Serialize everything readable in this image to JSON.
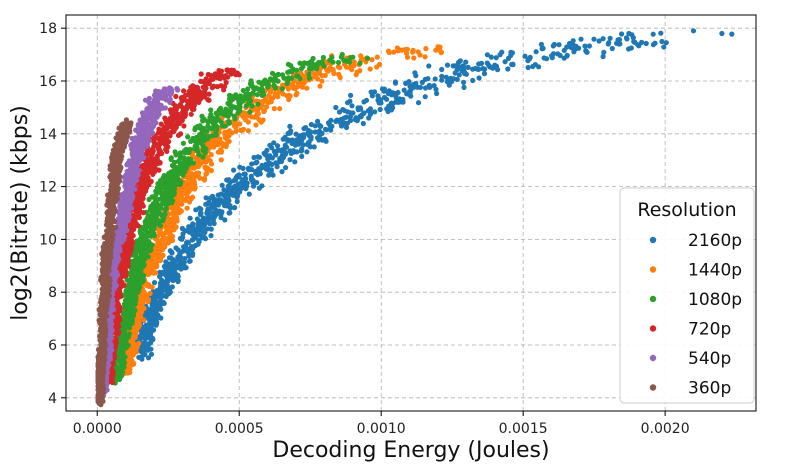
{
  "chart_data": {
    "type": "scatter",
    "title": "",
    "xlabel": "Decoding Energy (Joules)",
    "ylabel": "log2(Bitrate) (kbps)",
    "xlim": [
      -0.00011,
      0.00232
    ],
    "ylim": [
      3.5,
      18.5
    ],
    "x_ticks": [
      0.0,
      0.0005,
      0.001,
      0.0015,
      0.002
    ],
    "x_tick_labels": [
      "0.0000",
      "0.0005",
      "0.0010",
      "0.0015",
      "0.0020"
    ],
    "y_ticks": [
      4,
      6,
      8,
      10,
      12,
      14,
      16,
      18
    ],
    "y_tick_labels": [
      "4",
      "6",
      "8",
      "10",
      "12",
      "14",
      "16",
      "18"
    ],
    "grid": true,
    "legend": {
      "title": "Resolution",
      "position": "lower-right"
    },
    "series": [
      {
        "name": "2160p",
        "color": "#1f77b4",
        "points": [
          [
            0.00016,
            5.6
          ],
          [
            0.00018,
            6.6
          ],
          [
            0.00021,
            7.6
          ],
          [
            0.00026,
            8.6
          ],
          [
            0.00031,
            9.6
          ],
          [
            0.00038,
            10.6
          ],
          [
            0.00046,
            11.6
          ],
          [
            0.00057,
            12.6
          ],
          [
            0.0007,
            13.6
          ],
          [
            0.00087,
            14.6
          ],
          [
            0.0011,
            15.6
          ],
          [
            0.0014,
            16.6
          ],
          [
            0.0018,
            17.4
          ],
          [
            0.0021,
            17.9
          ],
          [
            0.0022,
            17.8
          ]
        ]
      },
      {
        "name": "1440p",
        "color": "#ff7f0e",
        "points": [
          [
            0.0001,
            5.0
          ],
          [
            0.00012,
            6.0
          ],
          [
            0.00014,
            7.0
          ],
          [
            0.00016,
            8.0
          ],
          [
            0.00019,
            9.0
          ],
          [
            0.00023,
            10.0
          ],
          [
            0.00027,
            11.0
          ],
          [
            0.00032,
            12.0
          ],
          [
            0.00038,
            13.0
          ],
          [
            0.00045,
            14.0
          ],
          [
            0.00056,
            15.0
          ],
          [
            0.00072,
            16.0
          ],
          [
            0.00093,
            16.8
          ],
          [
            0.0012,
            17.3
          ]
        ]
      },
      {
        "name": "1080p",
        "color": "#2ca02c",
        "points": [
          [
            7e-05,
            4.7
          ],
          [
            8e-05,
            5.7
          ],
          [
            0.0001,
            6.7
          ],
          [
            0.00012,
            7.7
          ],
          [
            0.00014,
            8.7
          ],
          [
            0.00016,
            9.7
          ],
          [
            0.0002,
            10.7
          ],
          [
            0.00024,
            11.7
          ],
          [
            0.00029,
            12.7
          ],
          [
            0.00036,
            13.7
          ],
          [
            0.00045,
            14.7
          ],
          [
            0.00058,
            15.7
          ],
          [
            0.00078,
            16.7
          ],
          [
            0.0009,
            16.9
          ]
        ]
      },
      {
        "name": "720p",
        "color": "#d62728",
        "points": [
          [
            4e-05,
            4.6
          ],
          [
            5e-05,
            5.6
          ],
          [
            6e-05,
            6.6
          ],
          [
            7e-05,
            7.6
          ],
          [
            8e-05,
            8.6
          ],
          [
            0.0001,
            9.6
          ],
          [
            0.00012,
            10.6
          ],
          [
            0.00015,
            11.6
          ],
          [
            0.00018,
            12.6
          ],
          [
            0.00022,
            13.6
          ],
          [
            0.00028,
            14.6
          ],
          [
            0.00036,
            15.6
          ],
          [
            0.00048,
            16.4
          ]
        ]
      },
      {
        "name": "540p",
        "color": "#9467bd",
        "points": [
          [
            2e-05,
            4.2
          ],
          [
            3e-05,
            5.2
          ],
          [
            4e-05,
            6.2
          ],
          [
            4e-05,
            7.2
          ],
          [
            5e-05,
            8.2
          ],
          [
            6e-05,
            9.2
          ],
          [
            8e-05,
            10.2
          ],
          [
            0.0001,
            11.2
          ],
          [
            0.00012,
            12.2
          ],
          [
            0.00014,
            13.2
          ],
          [
            0.00017,
            14.2
          ],
          [
            0.00021,
            15.2
          ],
          [
            0.00026,
            15.7
          ]
        ]
      },
      {
        "name": "360p",
        "color": "#8c564b",
        "points": [
          [
            1e-05,
            3.9
          ],
          [
            1e-05,
            4.9
          ],
          [
            2e-05,
            5.9
          ],
          [
            2e-05,
            6.9
          ],
          [
            3e-05,
            7.9
          ],
          [
            3e-05,
            8.9
          ],
          [
            4e-05,
            9.9
          ],
          [
            5e-05,
            10.9
          ],
          [
            6e-05,
            11.9
          ],
          [
            7e-05,
            12.9
          ],
          [
            9e-05,
            13.9
          ],
          [
            0.00011,
            14.4
          ]
        ]
      }
    ]
  }
}
